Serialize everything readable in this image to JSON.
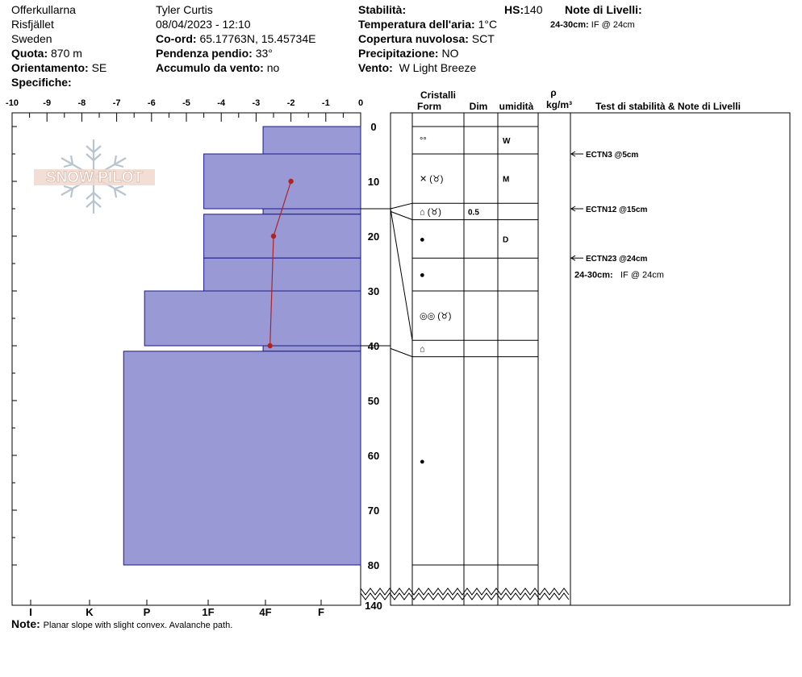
{
  "site": {
    "location": "Offerkullarna",
    "area": "Risfjället",
    "country": "Sweden",
    "elevation_label": "Quota:",
    "elevation_value": "870 m",
    "aspect_label": "Orientamento:",
    "aspect_value": "SE",
    "specifics_label": "Specifiche:"
  },
  "observer": {
    "name": "Tyler Curtis",
    "datetime": "08/04/2023 - 12:10",
    "coords_label": "Co-ord:",
    "coords_value": "65.17763N, 15.45734E",
    "slope_label": "Pendenza pendio:",
    "slope_value": "33°",
    "wind_loading_label": "Accumulo da vento:",
    "wind_loading_value": "no"
  },
  "conditions": {
    "stability_label": "Stabilità:",
    "stability_value": "",
    "hs_label": "HS:",
    "hs_value": "140",
    "air_temp_label": "Temperatura dell'aria:",
    "air_temp_value": "1°C",
    "cloud_label": "Copertura nuvolosa:",
    "cloud_value": "SCT",
    "precip_label": "Precipitazione:",
    "precip_value": "NO",
    "wind_label": "Vento:",
    "wind_value": "W Light Breeze"
  },
  "layer_notes_header": {
    "title": "Note di Livelli:",
    "item_depth": "24-30cm:",
    "item_text": "IF @ 24cm"
  },
  "note": {
    "label": "Note:",
    "text": "Planar slope with slight convex. Avalanche path."
  },
  "logo_text": "SNOW PILOT",
  "columns": {
    "crystals": "Cristalli",
    "form": "Form",
    "dim": "Dim",
    "moisture": "umidità",
    "rho": "ρ",
    "density_unit": "kg/m³",
    "tests": "Test di stabilità & Note di Livelli"
  },
  "tests": [
    {
      "depth": 5,
      "label": "ECTN3 @5cm"
    },
    {
      "depth": 15,
      "label": "ECTN12 @15cm"
    },
    {
      "depth": 24,
      "label": "ECTN23 @24cm"
    }
  ],
  "tests_note": {
    "depth_label": "24-30cm:",
    "text": "IF @ 24cm"
  },
  "chart_data": {
    "type": "snow_profile",
    "x_axis_temperature": {
      "ticks": [
        -10,
        -9,
        -8,
        -7,
        -6,
        -5,
        -4,
        -3,
        -2,
        -1,
        0
      ],
      "range": [
        -10,
        0
      ]
    },
    "x_axis_hardness": {
      "labels": [
        "I",
        "K",
        "P",
        "1F",
        "4F",
        "F"
      ]
    },
    "y_axis_depth": {
      "ticks": [
        0,
        10,
        20,
        30,
        40,
        50,
        60,
        70,
        80
      ],
      "max_label": "140",
      "range": [
        0,
        80
      ]
    },
    "hardness_layers": [
      {
        "top": 0,
        "bottom": 5,
        "hardness_value": -2.8
      },
      {
        "top": 5,
        "bottom": 15,
        "hardness_value": -4.5
      },
      {
        "top": 15,
        "bottom": 16,
        "hardness_value": -2.8
      },
      {
        "top": 16,
        "bottom": 24,
        "hardness_value": -4.5
      },
      {
        "top": 24,
        "bottom": 30,
        "hardness_value": -4.5
      },
      {
        "top": 30,
        "bottom": 40,
        "hardness_value": -6.2
      },
      {
        "top": 40,
        "bottom": 41,
        "hardness_value": -2.8
      },
      {
        "top": 41,
        "bottom": 80,
        "hardness_value": -6.8
      }
    ],
    "temperature_profile": [
      {
        "depth": 10,
        "temp": -2.0
      },
      {
        "depth": 20,
        "temp": -2.5
      },
      {
        "depth": 40,
        "temp": -2.6
      }
    ],
    "strata_boundaries": [
      0,
      5,
      14,
      17,
      24,
      30,
      39,
      42,
      80
    ],
    "crystal_layers": [
      {
        "depth_mid": 2.5,
        "form_symbol": "°°",
        "dim": "",
        "moisture": "W"
      },
      {
        "depth_mid": 9.5,
        "form_symbol": "✕ (♉)",
        "dim": "",
        "moisture": "M"
      },
      {
        "depth_mid": 15.5,
        "form_symbol": "⌂ (♉)",
        "dim": "0.5",
        "moisture": ""
      },
      {
        "depth_mid": 20.5,
        "form_symbol": "●",
        "dim": "",
        "moisture": "D"
      },
      {
        "depth_mid": 27,
        "form_symbol": "●",
        "dim": "",
        "moisture": ""
      },
      {
        "depth_mid": 34.5,
        "form_symbol": "◎◎ (♉)",
        "dim": "",
        "moisture": ""
      },
      {
        "depth_mid": 40.5,
        "form_symbol": "⌂",
        "dim": "",
        "moisture": ""
      },
      {
        "depth_mid": 61,
        "form_symbol": "●",
        "dim": "",
        "moisture": ""
      }
    ],
    "colors": {
      "hardness_fill": "#9999d6",
      "hardness_stroke": "#1a1a8c",
      "temp_line": "#b22222"
    }
  }
}
